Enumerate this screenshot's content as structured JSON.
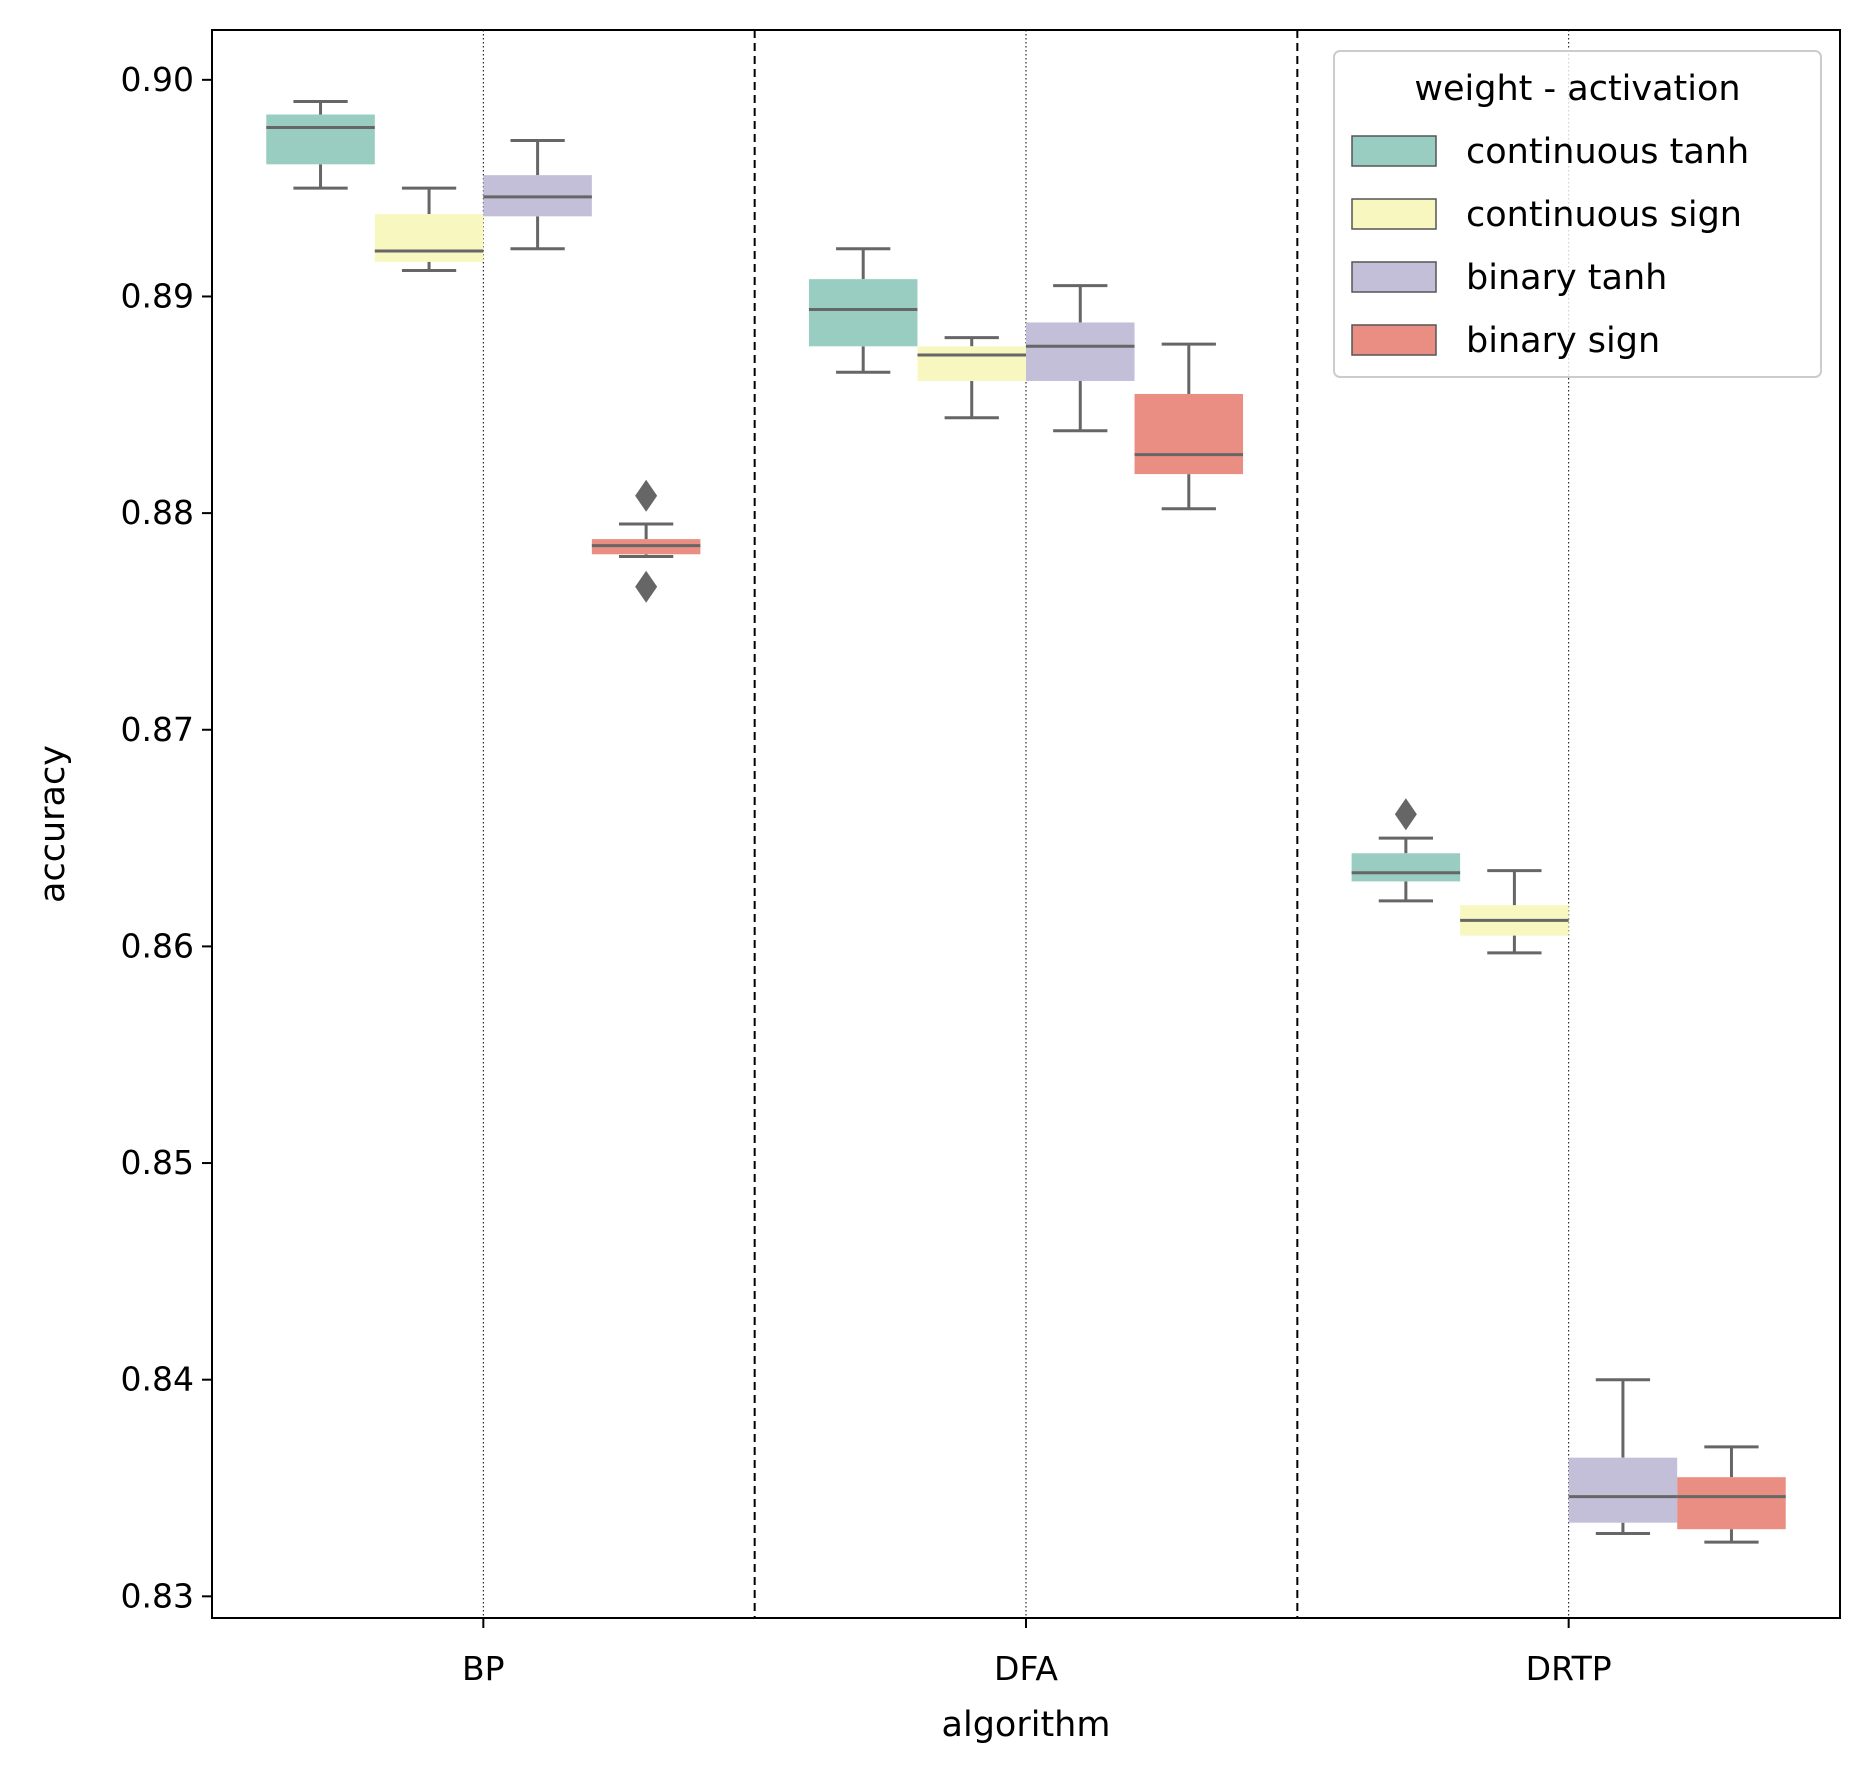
{
  "chart_data": {
    "type": "box",
    "xlabel": "algorithm",
    "ylabel": "accuracy",
    "categories": [
      "BP",
      "DFA",
      "DRTP"
    ],
    "ylim": [
      0.829,
      0.9023
    ],
    "yticks": [
      0.83,
      0.84,
      0.85,
      0.86,
      0.87,
      0.88,
      0.89,
      0.9
    ],
    "ytick_labels": [
      "0.83",
      "0.84",
      "0.85",
      "0.86",
      "0.87",
      "0.88",
      "0.89",
      "0.90"
    ],
    "grid": false,
    "category_separators": "dashed",
    "category_centers": "dotted",
    "legend": {
      "title": "weight - activation",
      "placement": "top-right"
    },
    "series": [
      {
        "name": "continuous tanh",
        "color": "#99CDC1",
        "boxes": [
          {
            "whisker_low": 0.895,
            "q1": 0.8961,
            "median": 0.8978,
            "q3": 0.8984,
            "whisker_high": 0.899,
            "outliers": []
          },
          {
            "whisker_low": 0.8865,
            "q1": 0.8877,
            "median": 0.8894,
            "q3": 0.8908,
            "whisker_high": 0.8922,
            "outliers": []
          },
          {
            "whisker_low": 0.8621,
            "q1": 0.863,
            "median": 0.8634,
            "q3": 0.8643,
            "whisker_high": 0.865,
            "outliers": [
              0.8661
            ]
          }
        ]
      },
      {
        "name": "continuous sign",
        "color": "#F7F7BF",
        "boxes": [
          {
            "whisker_low": 0.8912,
            "q1": 0.8916,
            "median": 0.8921,
            "q3": 0.8938,
            "whisker_high": 0.895,
            "outliers": []
          },
          {
            "whisker_low": 0.8844,
            "q1": 0.8861,
            "median": 0.8873,
            "q3": 0.8877,
            "whisker_high": 0.8881,
            "outliers": []
          },
          {
            "whisker_low": 0.8597,
            "q1": 0.8605,
            "median": 0.8612,
            "q3": 0.8619,
            "whisker_high": 0.8635,
            "outliers": []
          }
        ]
      },
      {
        "name": "binary tanh",
        "color": "#C3BFD8",
        "boxes": [
          {
            "whisker_low": 0.8922,
            "q1": 0.8937,
            "median": 0.8946,
            "q3": 0.8956,
            "whisker_high": 0.8972,
            "outliers": []
          },
          {
            "whisker_low": 0.8838,
            "q1": 0.8861,
            "median": 0.8877,
            "q3": 0.8888,
            "whisker_high": 0.8905,
            "outliers": []
          },
          {
            "whisker_low": 0.8329,
            "q1": 0.8334,
            "median": 0.8346,
            "q3": 0.8364,
            "whisker_high": 0.84,
            "outliers": []
          }
        ]
      },
      {
        "name": "binary sign",
        "color": "#EA8D82",
        "boxes": [
          {
            "whisker_low": 0.878,
            "q1": 0.8781,
            "median": 0.8785,
            "q3": 0.8788,
            "whisker_high": 0.8795,
            "outliers": [
              0.8808,
              0.8766
            ]
          },
          {
            "whisker_low": 0.8802,
            "q1": 0.8818,
            "median": 0.8827,
            "q3": 0.8855,
            "whisker_high": 0.8878,
            "outliers": []
          },
          {
            "whisker_low": 0.8325,
            "q1": 0.8331,
            "median": 0.8346,
            "q3": 0.8355,
            "whisker_high": 0.8369,
            "outliers": []
          }
        ]
      }
    ]
  }
}
